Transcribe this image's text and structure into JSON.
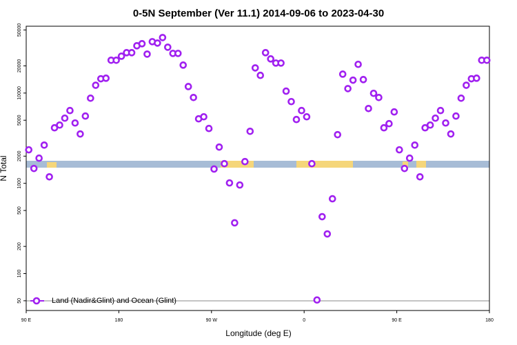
{
  "chart_data": {
    "type": "scatter",
    "title": "0-5N September (Ver 11.1)   2014-09-06 to 2023-04-30",
    "x_label": "Longitude (deg E)",
    "y_label": "N Total",
    "log_y": true,
    "legend": "lower left",
    "xlim": [
      90,
      540
    ],
    "xticks": [
      {
        "value": 90,
        "label": "90 E"
      },
      180,
      {
        "value": 270,
        "label": "90 W"
      },
      {
        "value": 360,
        "label": "0"
      },
      {
        "value": 450,
        "label": "90 E"
      },
      {
        "value": 540,
        "label": "180"
      }
    ],
    "ylim": [
      39,
      55000
    ],
    "yticks": [
      50,
      100,
      200,
      500,
      1000,
      2000,
      5000,
      10000,
      20000,
      50000
    ],
    "x": [
      92.5,
      97.5,
      102.5,
      107.5,
      112.5,
      117.5,
      122.5,
      127.5,
      132.5,
      137.5,
      142.5,
      147.5,
      152.5,
      157.5,
      162.5,
      167.5,
      172.5,
      177.5,
      182.5,
      187.5,
      192.5,
      197.5,
      202.5,
      207.5,
      212.5,
      217.5,
      222.5,
      227.5,
      232.5,
      237.5,
      242.5,
      247.5,
      252.5,
      257.5,
      262.5,
      267.5,
      272.5,
      277.5,
      282.5,
      287.5,
      292.5,
      297.5,
      302.5,
      307.5,
      312.5,
      317.5,
      322.5,
      327.5,
      332.5,
      337.5,
      342.5,
      347.5,
      352.5,
      357.5,
      362.5,
      367.5,
      372.5,
      377.5,
      382.5,
      387.5,
      392.5,
      397.5,
      402.5,
      407.5,
      412.5,
      417.5,
      422.5,
      427.5,
      432.5,
      437.5,
      442.5,
      447.5,
      452.5,
      457.5,
      462.5,
      467.5,
      472.5,
      477.5,
      482.5,
      487.5,
      492.5,
      497.5,
      502.5,
      507.5,
      512.5,
      517.5,
      522.5,
      527.5,
      532.5,
      537.5
    ],
    "series": [
      {
        "name": "Land (Nadir&Glint) and Ocean (Glint)",
        "color": "#a020f0",
        "values": [
          2350,
          1460,
          1900,
          2650,
          1180,
          4120,
          4420,
          5270,
          6400,
          4660,
          3520,
          5560,
          8770,
          12200,
          14400,
          14600,
          23100,
          23100,
          25600,
          28000,
          28000,
          33400,
          35200,
          27000,
          37100,
          35800,
          41200,
          32200,
          27500,
          27500,
          20400,
          11800,
          8930,
          5180,
          5460,
          4050,
          1440,
          2520,
          1650,
          1010,
          365,
          958,
          1740,
          3770,
          19000,
          15700,
          28000,
          23900,
          21500,
          21500,
          10500,
          8040,
          5090,
          6400,
          5460,
          1650,
          51,
          427,
          275,
          674,
          3460,
          16200,
          11200,
          13900,
          20800,
          14100,
          6740,
          9930,
          8930,
          4120,
          4580,
          6180,
          2350,
          1460,
          1900,
          2650,
          1180,
          4120,
          4420,
          5270,
          6400,
          4660,
          3520,
          5560,
          8770,
          12200,
          14400,
          14600,
          23100,
          23100
        ]
      }
    ]
  }
}
